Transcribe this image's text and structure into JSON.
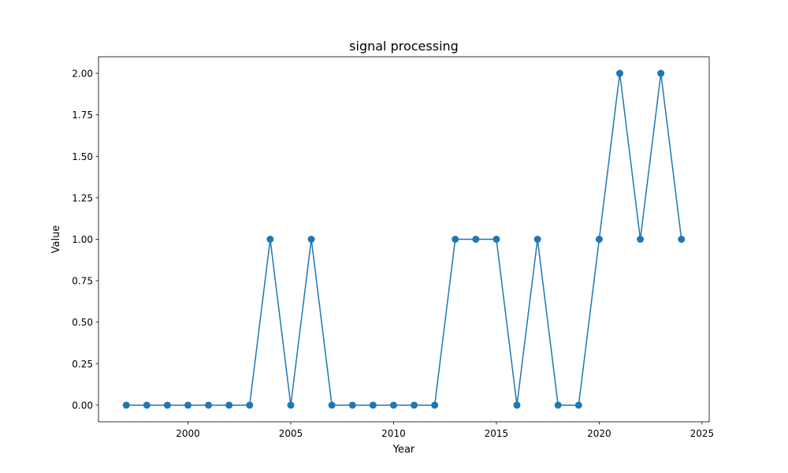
{
  "chart_data": {
    "type": "line",
    "title": "signal processing",
    "xlabel": "Year",
    "ylabel": "Value",
    "x": [
      1997,
      1998,
      1999,
      2000,
      2001,
      2002,
      2003,
      2004,
      2005,
      2006,
      2007,
      2008,
      2009,
      2010,
      2011,
      2012,
      2013,
      2014,
      2015,
      2016,
      2017,
      2018,
      2019,
      2020,
      2021,
      2022,
      2023,
      2024
    ],
    "series": [
      {
        "values": [
          0,
          0,
          0,
          0,
          0,
          0,
          0,
          1,
          0,
          1,
          0,
          0,
          0,
          0,
          0,
          0,
          1,
          1,
          1,
          0,
          1,
          0,
          0,
          1,
          2,
          1,
          2,
          1
        ],
        "color": "#1f77b4",
        "marker": "circle"
      }
    ],
    "xlim": [
      1995.65,
      2025.35
    ],
    "ylim": [
      -0.1,
      2.1
    ],
    "xticks": [
      2000,
      2005,
      2010,
      2015,
      2020,
      2025
    ],
    "xtick_labels": [
      "2000",
      "2005",
      "2010",
      "2015",
      "2020",
      "2025"
    ],
    "yticks": [
      0,
      0.25,
      0.5,
      0.75,
      1,
      1.25,
      1.5,
      1.75,
      2
    ],
    "ytick_labels": [
      "0.00",
      "0.25",
      "0.50",
      "0.75",
      "1.00",
      "1.25",
      "1.50",
      "1.75",
      "2.00"
    ],
    "grid": false,
    "legend": "none"
  }
}
